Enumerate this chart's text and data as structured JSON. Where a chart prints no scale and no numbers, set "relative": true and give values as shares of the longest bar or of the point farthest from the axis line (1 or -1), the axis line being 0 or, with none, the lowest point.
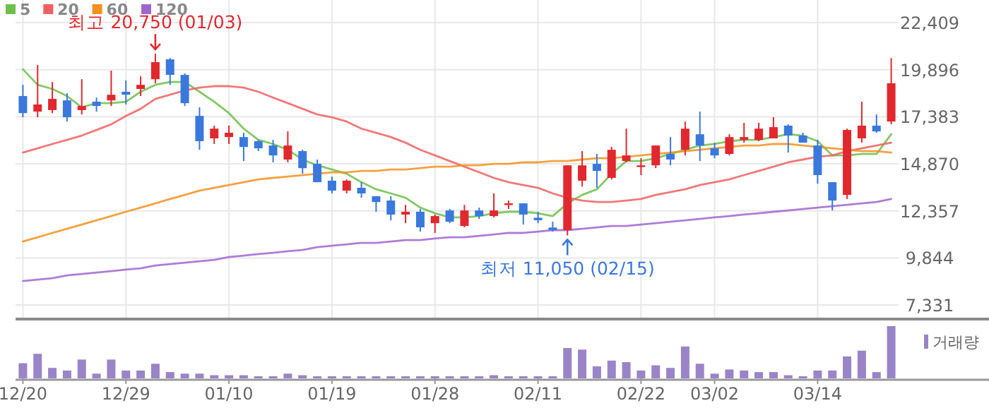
{
  "chart_data": [
    {
      "type": "candlestick",
      "legend": "top left",
      "grid": true,
      "tick_labels": "y",
      "categories": [
        null,
        null,
        null,
        null,
        null,
        null,
        null,
        null,
        null,
        null,
        null,
        null,
        null,
        null,
        null,
        null,
        null,
        null,
        null,
        null,
        null,
        null,
        null,
        null,
        null,
        null,
        null,
        null,
        null,
        null,
        null,
        null,
        null,
        null,
        null,
        null,
        null,
        null,
        null,
        null,
        null,
        null,
        null,
        null,
        null,
        null,
        null,
        null,
        null,
        null,
        null,
        null,
        null,
        null,
        null,
        null,
        null,
        null,
        null,
        null
      ],
      "ylim": [
        6580,
        23620
      ],
      "yticks": [
        {
          "value": 7331,
          "label": "7,331"
        },
        {
          "value": 9844,
          "label": "9,844"
        },
        {
          "value": 12357,
          "label": "12,357"
        },
        {
          "value": 14870,
          "label": "14,870"
        },
        {
          "value": 17383,
          "label": "17,383"
        },
        {
          "value": 19896,
          "label": "19,896"
        },
        {
          "value": 22409,
          "label": "22,409"
        }
      ],
      "ohlc": [
        [
          18490,
          19090,
          17360,
          17580
        ],
        [
          17660,
          20150,
          17360,
          18040
        ],
        [
          17740,
          19240,
          17580,
          18340
        ],
        [
          18260,
          18640,
          17130,
          17360
        ],
        [
          17740,
          19390,
          17510,
          17960
        ],
        [
          18190,
          18410,
          17660,
          17960
        ],
        [
          18260,
          19850,
          17960,
          18560
        ],
        [
          18720,
          19320,
          18040,
          18560
        ],
        [
          18870,
          19540,
          18490,
          19090
        ],
        [
          19390,
          20750,
          19170,
          20300
        ],
        [
          20450,
          20520,
          19090,
          19620
        ],
        [
          19620,
          19700,
          17960,
          18110
        ],
        [
          17430,
          17890,
          15620,
          16080
        ],
        [
          16230,
          16910,
          15930,
          16750
        ],
        [
          16300,
          16910,
          15930,
          16530
        ],
        [
          16300,
          16530,
          15020,
          15770
        ],
        [
          16080,
          16150,
          15550,
          15700
        ],
        [
          15850,
          16150,
          14950,
          15320
        ],
        [
          15100,
          16600,
          14950,
          15850
        ],
        [
          15550,
          15620,
          14340,
          14640
        ],
        [
          14870,
          15100,
          13890,
          13890
        ],
        [
          13970,
          14190,
          13290,
          13440
        ],
        [
          13440,
          14040,
          13290,
          13970
        ],
        [
          13590,
          13890,
          13060,
          13290
        ],
        [
          13140,
          13140,
          12310,
          12830
        ],
        [
          12910,
          13140,
          11850,
          12160
        ],
        [
          12160,
          12680,
          11700,
          12310
        ],
        [
          12310,
          12460,
          11250,
          11480
        ],
        [
          11700,
          12160,
          11180,
          12080
        ],
        [
          12380,
          12460,
          11700,
          11780
        ],
        [
          11550,
          12680,
          11480,
          12380
        ],
        [
          12380,
          12530,
          11930,
          12080
        ],
        [
          12080,
          13290,
          12010,
          12380
        ],
        [
          12680,
          12910,
          12460,
          12760
        ],
        [
          12760,
          12760,
          11630,
          12160
        ],
        [
          11990,
          12310,
          11700,
          11860
        ],
        [
          11470,
          11780,
          11250,
          11330
        ],
        [
          11330,
          14790,
          11050,
          14790
        ],
        [
          13970,
          15550,
          13660,
          14790
        ],
        [
          14870,
          15400,
          13590,
          14490
        ],
        [
          14120,
          15770,
          14040,
          15620
        ],
        [
          15020,
          16750,
          14950,
          15320
        ],
        [
          14720,
          15170,
          14270,
          14790
        ],
        [
          14790,
          15850,
          14640,
          15850
        ],
        [
          15400,
          16300,
          14790,
          15100
        ],
        [
          15620,
          17130,
          15320,
          16750
        ],
        [
          16450,
          17660,
          15020,
          15850
        ],
        [
          15700,
          16000,
          15170,
          15320
        ],
        [
          15400,
          16450,
          15320,
          16300
        ],
        [
          16150,
          17060,
          16000,
          16300
        ],
        [
          16150,
          17060,
          16080,
          16750
        ],
        [
          16230,
          17360,
          16230,
          16830
        ],
        [
          16910,
          16980,
          15470,
          16380
        ],
        [
          16380,
          16530,
          16000,
          16000
        ],
        [
          15850,
          16150,
          13810,
          14270
        ],
        [
          13890,
          13890,
          12380,
          12910
        ],
        [
          13210,
          16750,
          12990,
          16680
        ],
        [
          16230,
          18190,
          16000,
          16910
        ],
        [
          16910,
          17510,
          16530,
          16600
        ],
        [
          17130,
          20520,
          16980,
          19170
        ]
      ],
      "colors": [
        "#3a78dc",
        "#e0282e",
        "#e0282e",
        "#3a78dc",
        "#e0282e",
        "#3a78dc",
        "#e0282e",
        "#3a78dc",
        "#e0282e",
        "#e0282e",
        "#3a78dc",
        "#3a78dc",
        "#3a78dc",
        "#e0282e",
        "#e0282e",
        "#3a78dc",
        "#3a78dc",
        "#3a78dc",
        "#e0282e",
        "#3a78dc",
        "#3a78dc",
        "#3a78dc",
        "#e0282e",
        "#3a78dc",
        "#3a78dc",
        "#3a78dc",
        "#e0282e",
        "#3a78dc",
        "#e0282e",
        "#3a78dc",
        "#e0282e",
        "#3a78dc",
        "#e0282e",
        "#e0282e",
        "#3a78dc",
        "#3a78dc",
        "#3a78dc",
        "#e0282e",
        "#e0282e",
        "#3a78dc",
        "#e0282e",
        "#e0282e",
        "#e0282e",
        "#e0282e",
        "#3a78dc",
        "#e0282e",
        "#3a78dc",
        "#3a78dc",
        "#e0282e",
        "#e0282e",
        "#e0282e",
        "#e0282e",
        "#3a78dc",
        "#3a78dc",
        "#3a78dc",
        "#3a78dc",
        "#e0282e",
        "#e0282e",
        "#3a78dc",
        "#e0282e"
      ],
      "series": [
        {
          "name": "5",
          "type": "line",
          "color": "#6cc04a",
          "values": [
            19920,
            19090,
            18870,
            18490,
            17890,
            18110,
            18110,
            18190,
            18720,
            19090,
            19240,
            19240,
            18720,
            18190,
            17580,
            16750,
            16150,
            15930,
            15620,
            15100,
            14790,
            14570,
            14340,
            13890,
            13510,
            13290,
            13060,
            12530,
            12230,
            12010,
            12010,
            12080,
            12230,
            12310,
            12310,
            12230,
            12080,
            12760,
            13210,
            13510,
            14340,
            15020,
            15020,
            15170,
            15400,
            15620,
            15850,
            15930,
            16080,
            16150,
            16150,
            16300,
            16450,
            16380,
            16080,
            15320,
            15320,
            15400,
            15400,
            16450
          ]
        },
        {
          "name": "20",
          "type": "line",
          "color": "#f06060",
          "values": [
            15470,
            15700,
            15930,
            16150,
            16380,
            16680,
            16980,
            17430,
            17810,
            18340,
            18560,
            18790,
            18940,
            19020,
            19020,
            18940,
            18720,
            18410,
            18110,
            17810,
            17510,
            17360,
            17130,
            16750,
            16530,
            16300,
            16000,
            15620,
            15320,
            15020,
            14720,
            14420,
            14120,
            13890,
            13740,
            13590,
            13290,
            13060,
            12910,
            12830,
            12830,
            12910,
            12990,
            13210,
            13360,
            13510,
            13740,
            13890,
            14040,
            14270,
            14490,
            14720,
            14950,
            15100,
            15250,
            15320,
            15550,
            15700,
            15850,
            16000
          ]
        },
        {
          "name": "60",
          "type": "line",
          "color": "#f39020",
          "values": [
            10720,
            10950,
            11180,
            11400,
            11630,
            11850,
            12080,
            12310,
            12530,
            12760,
            12990,
            13210,
            13440,
            13590,
            13740,
            13890,
            14040,
            14120,
            14190,
            14270,
            14340,
            14420,
            14420,
            14490,
            14490,
            14570,
            14570,
            14640,
            14720,
            14720,
            14790,
            14790,
            14870,
            14870,
            14950,
            14950,
            15020,
            15020,
            15100,
            15170,
            15170,
            15250,
            15320,
            15400,
            15470,
            15550,
            15620,
            15700,
            15770,
            15850,
            15850,
            15930,
            15930,
            15850,
            15770,
            15700,
            15620,
            15550,
            15550,
            15470
          ]
        },
        {
          "name": "120",
          "type": "line",
          "color": "#a066d0",
          "values": [
            8610,
            8690,
            8760,
            8910,
            8990,
            9060,
            9140,
            9220,
            9290,
            9440,
            9520,
            9590,
            9670,
            9740,
            9890,
            9970,
            10050,
            10120,
            10200,
            10270,
            10420,
            10500,
            10570,
            10650,
            10650,
            10720,
            10800,
            10800,
            10880,
            10950,
            10950,
            11020,
            11100,
            11180,
            11180,
            11250,
            11330,
            11330,
            11400,
            11480,
            11550,
            11550,
            11630,
            11700,
            11780,
            11850,
            11930,
            12010,
            12080,
            12160,
            12230,
            12310,
            12380,
            12460,
            12530,
            12610,
            12680,
            12760,
            12830,
            12990
          ]
        }
      ],
      "annotations": [
        {
          "text": "최고 20,750 (01/03)",
          "y": 20750
        },
        {
          "text": "최저 11,050 (02/15)",
          "y": 11050
        }
      ]
    },
    {
      "type": "bar",
      "relative": true,
      "legend": "top right",
      "tick_labels": "x",
      "categories": [
        "12/20",
        null,
        null,
        null,
        null,
        null,
        null,
        "12/29",
        null,
        null,
        null,
        null,
        null,
        null,
        "01/10",
        null,
        null,
        null,
        null,
        null,
        null,
        "01/19",
        null,
        null,
        null,
        null,
        null,
        null,
        "01/28",
        null,
        null,
        null,
        null,
        null,
        null,
        "02/11",
        null,
        null,
        null,
        null,
        null,
        null,
        "02/22",
        null,
        null,
        null,
        null,
        "03/02",
        null,
        null,
        null,
        null,
        null,
        null,
        "03/14",
        null,
        null,
        null,
        null,
        null
      ],
      "series": [
        {
          "name": "거래량",
          "color": "#9a84c8",
          "values": [
            0.29,
            0.47,
            0.2,
            0.15,
            0.36,
            0.09,
            0.36,
            0.15,
            0.15,
            0.28,
            0.12,
            0.09,
            0.09,
            0.06,
            0.06,
            0.06,
            0.04,
            0.04,
            0.09,
            0.06,
            0.04,
            0.04,
            0.04,
            0.04,
            0.04,
            0.04,
            0.04,
            0.04,
            0.04,
            0.04,
            0.04,
            0.04,
            0.06,
            0.04,
            0.04,
            0.04,
            0.04,
            0.58,
            0.55,
            0.23,
            0.34,
            0.31,
            0.15,
            0.25,
            0.2,
            0.61,
            0.28,
            0.09,
            0.17,
            0.15,
            0.12,
            0.12,
            0.06,
            0.04,
            0.15,
            0.15,
            0.42,
            0.53,
            0.12,
            1
          ]
        }
      ]
    }
  ]
}
